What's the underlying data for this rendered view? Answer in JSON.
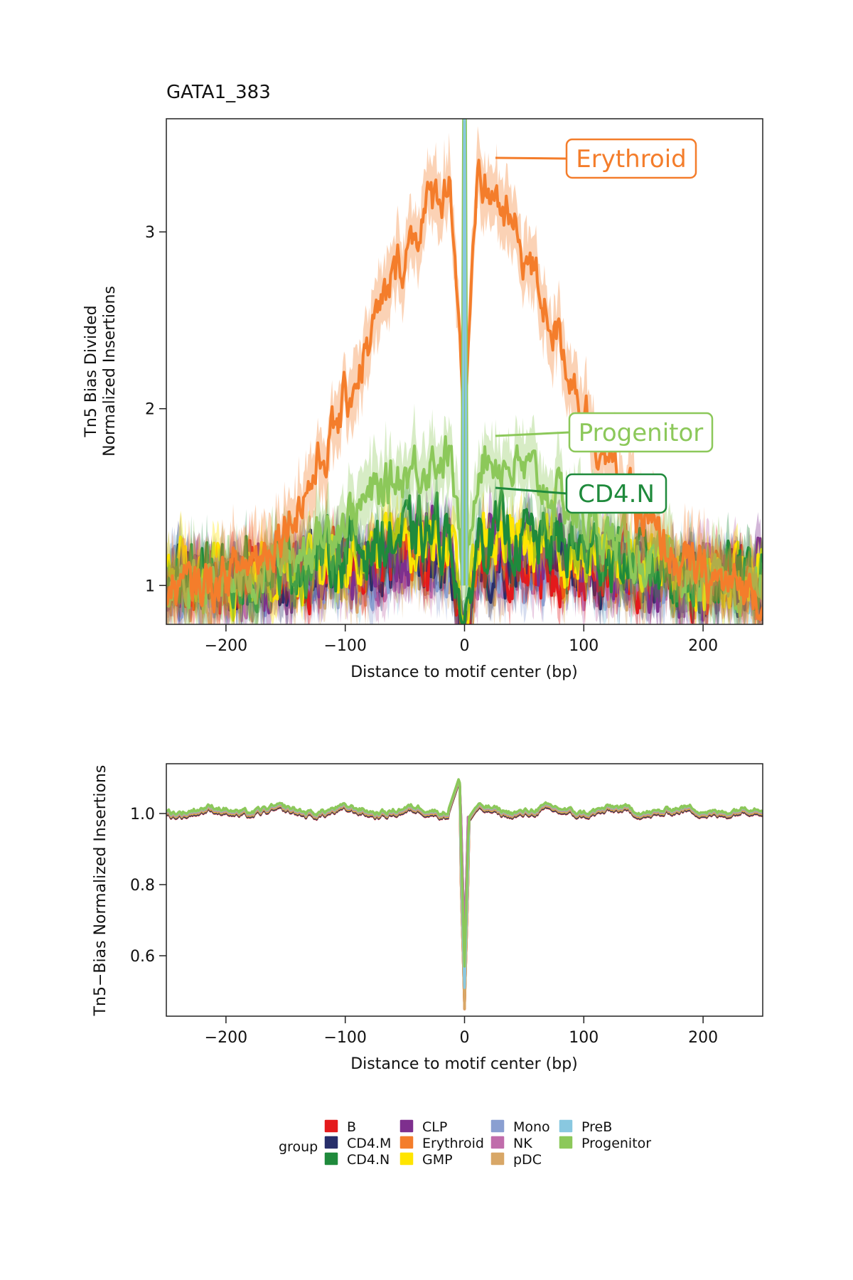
{
  "chart_data": [
    {
      "type": "line",
      "title": "GATA1_383",
      "xlabel": "Distance to motif center (bp)",
      "ylabel_lines": [
        "Tn5 Bias Divided",
        "Normalized Insertions"
      ],
      "xlim": [
        -250,
        250
      ],
      "ylim": [
        0.78,
        3.64
      ],
      "x_ticks": [
        -200,
        -100,
        0,
        100,
        200
      ],
      "x_tick_labels": [
        "−200",
        "−100",
        "0",
        "100",
        "200"
      ],
      "y_ticks": [
        1,
        2,
        3
      ],
      "y_tick_labels": [
        "1",
        "2",
        "3"
      ],
      "grid": false,
      "ribbons": true,
      "labeled_series": [
        {
          "name": "Erythroid",
          "color": "#F47D2B"
        },
        {
          "name": "Progenitor",
          "color": "#8CC85A"
        },
        {
          "name": "CD4.N",
          "color": "#1F8A3C"
        }
      ],
      "series": [
        {
          "name": "Erythroid",
          "color": "#F47D2B",
          "shape": "gaussian_footprint",
          "peak_level": 3.3,
          "edge_level": 0.95,
          "width_bp": 80,
          "center_value": 1.9
        },
        {
          "name": "Progenitor",
          "color": "#8CC85A",
          "shape": "gaussian_footprint",
          "peak_level": 1.75,
          "edge_level": 0.95,
          "width_bp": 90,
          "center_value": 1.25
        },
        {
          "name": "CD4.N",
          "color": "#1F8A3C",
          "shape": "flat_noisy",
          "peak_level": 1.3,
          "edge_level": 1.0,
          "width_bp": 110,
          "center_value": 1.0
        },
        {
          "name": "GMP",
          "color": "#FFE500",
          "shape": "flat_noisy",
          "peak_level": 1.28,
          "edge_level": 1.02,
          "width_bp": 100,
          "center_value": 1.0
        },
        {
          "name": "CLP",
          "color": "#7E2F8E",
          "shape": "flat_noisy",
          "peak_level": 1.25,
          "edge_level": 1.0,
          "width_bp": 100,
          "center_value": 1.0
        },
        {
          "name": "B",
          "color": "#E41A1C",
          "shape": "flat_noisy",
          "peak_level": 1.15,
          "edge_level": 1.0,
          "width_bp": 100,
          "center_value": 1.0
        },
        {
          "name": "CD4.M",
          "color": "#272E6A",
          "shape": "flat_noisy",
          "peak_level": 1.15,
          "edge_level": 1.0,
          "width_bp": 100,
          "center_value": 1.0
        },
        {
          "name": "Mono",
          "color": "#8A9FD1",
          "shape": "flat_noisy",
          "peak_level": 1.12,
          "edge_level": 1.0,
          "width_bp": 100,
          "center_value": 1.0
        },
        {
          "name": "NK",
          "color": "#C06CAB",
          "shape": "flat_noisy",
          "peak_level": 1.12,
          "edge_level": 1.0,
          "width_bp": 100,
          "center_value": 1.0
        },
        {
          "name": "pDC",
          "color": "#D8A767",
          "shape": "flat_noisy",
          "peak_level": 1.1,
          "edge_level": 1.0,
          "width_bp": 100,
          "center_value": 1.0
        },
        {
          "name": "PreB",
          "color": "#89C8E0",
          "shape": "flat_noisy",
          "peak_level": 1.2,
          "edge_level": 1.0,
          "width_bp": 100,
          "center_value": 1.0
        }
      ]
    },
    {
      "type": "line",
      "title": "",
      "xlabel": "Distance to motif center (bp)",
      "ylabel": "Tn5−Bias Normalized Insertions",
      "xlim": [
        -250,
        250
      ],
      "ylim": [
        0.43,
        1.14
      ],
      "x_ticks": [
        -200,
        -100,
        0,
        100,
        200
      ],
      "x_tick_labels": [
        "−200",
        "−100",
        "0",
        "100",
        "200"
      ],
      "y_ticks": [
        0.6,
        0.8,
        1.0
      ],
      "y_tick_labels": [
        "0.6",
        "0.8",
        "1.0"
      ],
      "grid": false,
      "baseline": 1.0,
      "dip": {
        "x": 0,
        "min": 0.45,
        "pre_peak": 1.1
      },
      "series_order": [
        "B",
        "CD4.M",
        "CD4.N",
        "CLP",
        "Erythroid",
        "GMP",
        "Mono",
        "NK",
        "pDC",
        "PreB",
        "Progenitor"
      ]
    }
  ],
  "legend": {
    "title": "group",
    "placement": "bottom",
    "columns": [
      [
        {
          "label": "B",
          "color": "#E41A1C"
        },
        {
          "label": "CD4.M",
          "color": "#272E6A"
        },
        {
          "label": "CD4.N",
          "color": "#1F8A3C"
        }
      ],
      [
        {
          "label": "CLP",
          "color": "#7E2F8E"
        },
        {
          "label": "Erythroid",
          "color": "#F47D2B"
        },
        {
          "label": "GMP",
          "color": "#FFE500"
        }
      ],
      [
        {
          "label": "Mono",
          "color": "#8A9FD1"
        },
        {
          "label": "NK",
          "color": "#C06CAB"
        },
        {
          "label": "pDC",
          "color": "#D8A767"
        }
      ],
      [
        {
          "label": "PreB",
          "color": "#89C8E0"
        },
        {
          "label": "Progenitor",
          "color": "#8CC85A"
        }
      ]
    ]
  }
}
